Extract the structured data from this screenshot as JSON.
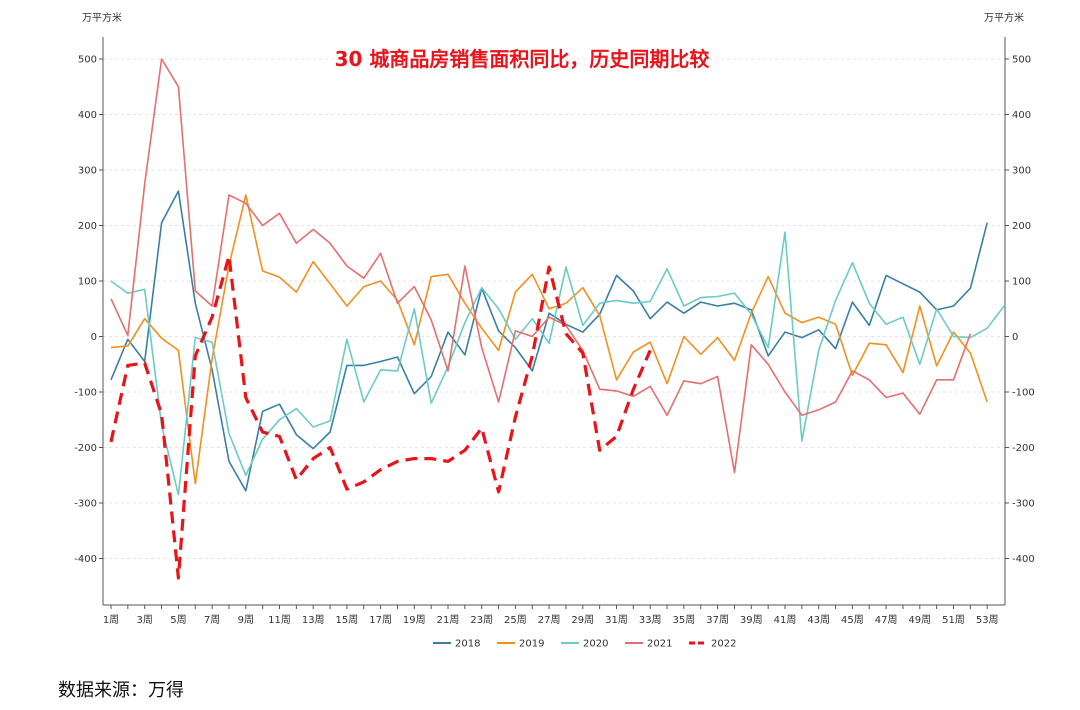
{
  "chart_data": {
    "type": "line",
    "title": "30 城商品房销售面积同比，历史同期比较",
    "ylabel_left": "万平方米",
    "ylabel_right": "万平方米",
    "ylim": [
      -480,
      520
    ],
    "yticks": [
      -400,
      -300,
      -200,
      -100,
      0,
      100,
      200,
      300,
      400,
      500
    ],
    "x_tick_labels": [
      "1周",
      "3周",
      "5周",
      "7周",
      "9周",
      "11周",
      "13周",
      "15周",
      "17周",
      "19周",
      "21周",
      "23周",
      "25周",
      "27周",
      "29周",
      "31周",
      "33周",
      "35周",
      "37周",
      "39周",
      "41周",
      "43周",
      "45周",
      "47周",
      "49周",
      "51周",
      "53周"
    ],
    "legend_position": "bottom",
    "series": [
      {
        "name": "2018",
        "color": "#3a7fa5",
        "dashed": false,
        "values": [
          -78,
          -5,
          -45,
          205,
          262,
          60,
          -60,
          -225,
          -278,
          -135,
          -122,
          -177,
          -202,
          -172,
          -52,
          -52,
          -45,
          -37,
          -103,
          -72,
          8,
          -33,
          87,
          10,
          -20,
          -62,
          42,
          22,
          8,
          40,
          110,
          82,
          32,
          62,
          42,
          62,
          55,
          60,
          48,
          -35,
          8,
          -2,
          12,
          -22,
          62,
          20,
          110,
          95,
          80,
          48,
          55,
          87,
          205
        ]
      },
      {
        "name": "2019",
        "color": "#f3901d",
        "dashed": false,
        "values": [
          -20,
          -17,
          32,
          -3,
          -25,
          -265,
          -40,
          128,
          255,
          118,
          107,
          80,
          135,
          95,
          55,
          90,
          100,
          65,
          -15,
          108,
          112,
          60,
          15,
          -25,
          80,
          112,
          50,
          60,
          88,
          38,
          -78,
          -28,
          -10,
          -85,
          0,
          -32,
          -2,
          -43,
          42,
          108,
          42,
          25,
          35,
          22,
          -70,
          -12,
          -15,
          -65,
          55,
          -53,
          8,
          -30,
          -118
        ]
      },
      {
        "name": "2020",
        "color": "#6ccbc7",
        "dashed": false,
        "values": [
          100,
          78,
          85,
          -160,
          -285,
          -2,
          -10,
          -175,
          -250,
          -185,
          -150,
          -130,
          -163,
          -152,
          -5,
          -118,
          -60,
          -62,
          50,
          -120,
          -55,
          25,
          88,
          50,
          -5,
          32,
          -12,
          125,
          20,
          60,
          65,
          60,
          63,
          122,
          55,
          70,
          72,
          78,
          40,
          -20,
          188,
          -188,
          -25,
          65,
          133,
          60,
          22,
          35,
          -50,
          50,
          0,
          -2,
          15,
          55
        ]
      },
      {
        "name": "2021",
        "color": "#e46f6f",
        "dashed": false,
        "values": [
          68,
          2,
          275,
          500,
          450,
          82,
          55,
          255,
          240,
          200,
          222,
          168,
          193,
          168,
          127,
          105,
          150,
          60,
          90,
          30,
          -62,
          127,
          -20,
          -118,
          10,
          0,
          35,
          20,
          -25,
          -95,
          -98,
          -108,
          -90,
          -142,
          -80,
          -85,
          -72,
          -245,
          -15,
          -50,
          -100,
          -142,
          -132,
          -118,
          -62,
          -78,
          -110,
          -102,
          -140,
          -78,
          -78,
          5
        ]
      },
      {
        "name": "2022",
        "color": "#e8141a",
        "dashed": true,
        "values": [
          -190,
          -52,
          -48,
          -140,
          -435,
          -35,
          35,
          145,
          -110,
          -172,
          -180,
          -258,
          -220,
          -200,
          -275,
          -262,
          -240,
          -225,
          -220,
          -220,
          -225,
          -205,
          -165,
          -280,
          -145,
          -35,
          125,
          5,
          -30,
          -205,
          -180,
          -95,
          -25
        ]
      }
    ]
  },
  "source_text": "数据来源：万得",
  "legend_entries": [
    "2018",
    "2019",
    "2020",
    "2021",
    "2022"
  ]
}
